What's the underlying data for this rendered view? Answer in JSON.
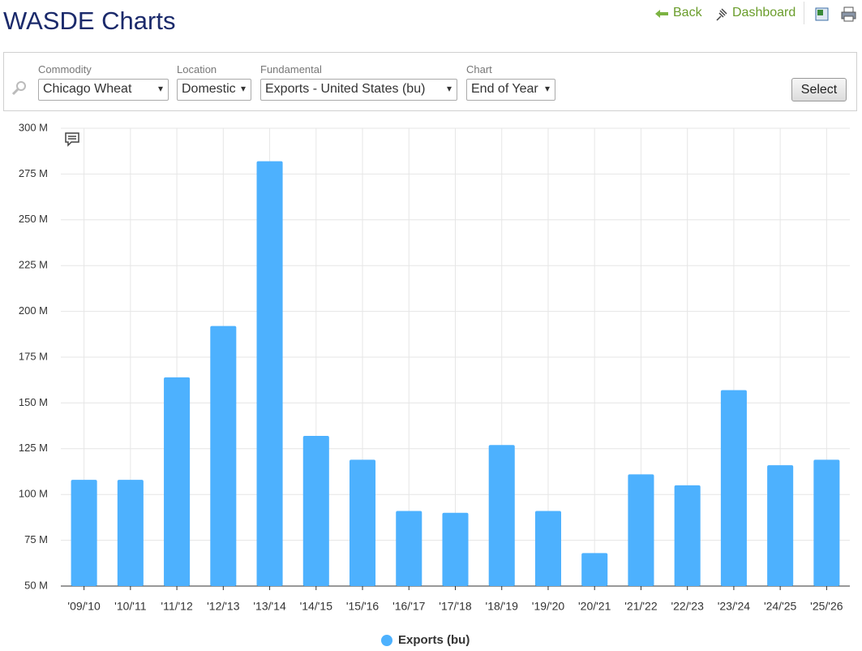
{
  "header": {
    "title": "WASDE Charts",
    "links": [
      "Back",
      "Dashboard"
    ]
  },
  "filters": [
    {
      "label": "Commodity",
      "value": "Chicago Wheat"
    },
    {
      "label": "Location",
      "value": "Domestic"
    },
    {
      "label": "Fundamental",
      "value": "Exports - United States (bu)"
    },
    {
      "label": "Chart",
      "value": "End of Year"
    }
  ],
  "button": "Select",
  "chart_data": {
    "type": "bar",
    "categories": [
      "'09/'10",
      "'10/'11",
      "'11/'12",
      "'12/'13",
      "'13/'14",
      "'14/'15",
      "'15/'16",
      "'16/'17",
      "'17/'18",
      "'18/'19",
      "'19/'20",
      "'20/'21",
      "'21/'22",
      "'22/'23",
      "'23/'24",
      "'24/'25",
      "'25/'26"
    ],
    "series": [
      {
        "name": "Exports (bu)",
        "color": "#4db1fe",
        "values": [
          108000000,
          108000000,
          164000000,
          192000000,
          282000000,
          132000000,
          119000000,
          91000000,
          90000000,
          127000000,
          91000000,
          68000000,
          111000000,
          105000000,
          157000000,
          116000000,
          119000000
        ]
      }
    ],
    "ylim": [
      50000000,
      300000000
    ],
    "yticks": [
      {
        "value": 50000000,
        "label": "50 M"
      },
      {
        "value": 75000000,
        "label": "75 M"
      },
      {
        "value": 100000000,
        "label": "100 M"
      },
      {
        "value": 125000000,
        "label": "125 M"
      },
      {
        "value": 150000000,
        "label": "150 M"
      },
      {
        "value": 175000000,
        "label": "175 M"
      },
      {
        "value": 200000000,
        "label": "200 M"
      },
      {
        "value": 225000000,
        "label": "225 M"
      },
      {
        "value": 250000000,
        "label": "250 M"
      },
      {
        "value": 275000000,
        "label": "275 M"
      },
      {
        "value": 300000000,
        "label": "300 M"
      }
    ],
    "grid": true,
    "legend": "bottom"
  }
}
